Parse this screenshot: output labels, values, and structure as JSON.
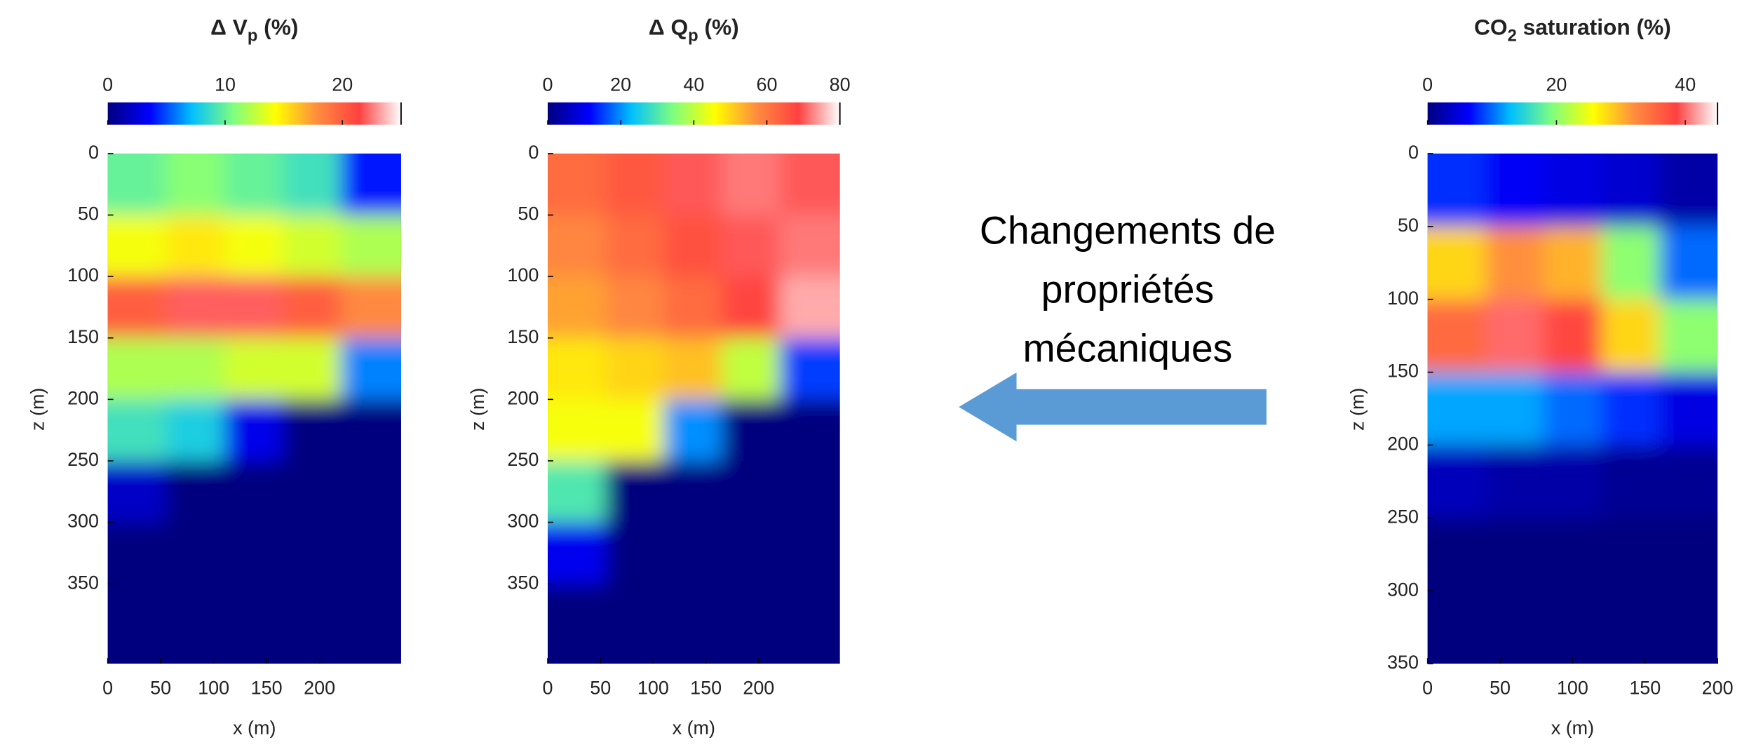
{
  "chart_data": [
    {
      "type": "heatmap",
      "title": [
        "Δ V",
        "p",
        " (%)"
      ],
      "xlabel": "x (m)",
      "ylabel": "z (m)",
      "xlim": [
        0,
        277
      ],
      "ylim": [
        0,
        415
      ],
      "xticks": [
        0,
        50,
        100,
        150,
        200
      ],
      "yticks": [
        0,
        50,
        100,
        150,
        200,
        250,
        300,
        350
      ],
      "clim": [
        0,
        25
      ],
      "cticks": [
        0,
        10,
        20
      ],
      "colormap": [
        "#00007f",
        "#0000ff",
        "#00bfff",
        "#7fff7f",
        "#ffff00",
        "#ff8c3f",
        "#ff4040",
        "#ffffff"
      ],
      "xbins": [
        0,
        55,
        110,
        165,
        220,
        277
      ],
      "zbins": [
        0,
        50,
        100,
        150,
        200,
        250,
        300,
        350,
        415
      ],
      "values": [
        [
          10,
          11,
          10,
          9,
          4
        ],
        [
          14,
          15,
          14,
          13,
          12
        ],
        [
          20,
          22,
          22,
          20,
          18
        ],
        [
          12,
          12,
          13,
          13,
          6
        ],
        [
          9,
          8,
          3,
          0,
          0
        ],
        [
          2,
          0,
          0,
          0,
          0
        ],
        [
          0,
          0,
          0,
          0,
          0
        ],
        [
          0,
          0,
          0,
          0,
          0
        ]
      ]
    },
    {
      "type": "heatmap",
      "title": [
        "Δ Q",
        "p",
        " (%)"
      ],
      "xlabel": "x (m)",
      "ylabel": "z (m)",
      "xlim": [
        0,
        277
      ],
      "ylim": [
        0,
        415
      ],
      "xticks": [
        0,
        50,
        100,
        150,
        200
      ],
      "yticks": [
        0,
        50,
        100,
        150,
        200,
        250,
        300,
        350
      ],
      "clim": [
        0,
        80
      ],
      "cticks": [
        0,
        20,
        40,
        60,
        80
      ],
      "colormap": [
        "#00007f",
        "#0000ff",
        "#00bfff",
        "#7fff7f",
        "#ffff00",
        "#ff8c3f",
        "#ff4040",
        "#ffffff"
      ],
      "xbins": [
        0,
        55,
        110,
        165,
        220,
        277
      ],
      "zbins": [
        0,
        50,
        100,
        150,
        200,
        250,
        300,
        350,
        415
      ],
      "values": [
        [
          62,
          65,
          70,
          72,
          70
        ],
        [
          58,
          62,
          66,
          70,
          72
        ],
        [
          55,
          58,
          62,
          68,
          75
        ],
        [
          48,
          50,
          52,
          40,
          15
        ],
        [
          45,
          45,
          20,
          0,
          0
        ],
        [
          30,
          0,
          0,
          0,
          0
        ],
        [
          10,
          0,
          0,
          0,
          0
        ],
        [
          0,
          0,
          0,
          0,
          0
        ]
      ]
    },
    {
      "type": "heatmap",
      "title": [
        "CO",
        "2",
        " saturation (%)"
      ],
      "xlabel": "x (m)",
      "ylabel": "z (m)",
      "xlim": [
        0,
        200
      ],
      "ylim": [
        0,
        350
      ],
      "xticks": [
        0,
        50,
        100,
        150,
        200
      ],
      "yticks": [
        0,
        50,
        100,
        150,
        200,
        250,
        300,
        350
      ],
      "clim": [
        0,
        45
      ],
      "cticks": [
        0,
        20,
        40
      ],
      "colormap": [
        "#00007f",
        "#0000ff",
        "#00bfff",
        "#7fff7f",
        "#ffff00",
        "#ff8c3f",
        "#ff4040",
        "#ffffff"
      ],
      "xbins": [
        0,
        40,
        80,
        120,
        160,
        200
      ],
      "zbins": [
        0,
        50,
        100,
        150,
        200,
        250,
        300,
        350
      ],
      "values": [
        [
          8,
          6,
          5,
          4,
          2
        ],
        [
          28,
          32,
          30,
          20,
          10
        ],
        [
          35,
          40,
          38,
          28,
          20
        ],
        [
          12,
          12,
          10,
          8,
          5
        ],
        [
          3,
          2,
          2,
          1,
          1
        ],
        [
          0,
          0,
          0,
          0,
          0
        ],
        [
          0,
          0,
          0,
          0,
          0
        ]
      ]
    }
  ],
  "annotation": {
    "lines": [
      "Changements de",
      "propriétés",
      "mécaniques"
    ]
  }
}
